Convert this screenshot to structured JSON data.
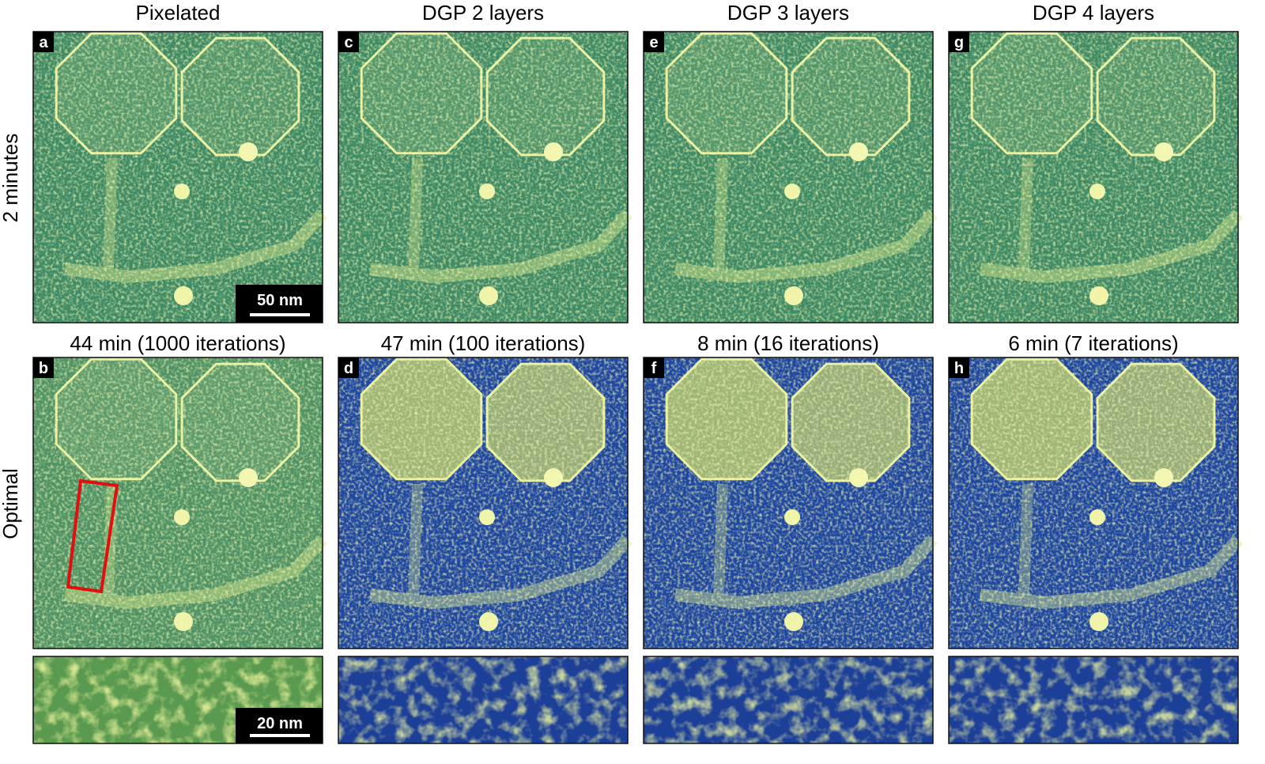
{
  "row_labels": [
    "2 minutes",
    "Optimal"
  ],
  "columns": [
    {
      "title": "Pixelated",
      "top_letter": "a",
      "bottom_letter": "b",
      "time": "44 min (1000 iterations)"
    },
    {
      "title": "DGP 2 layers",
      "top_letter": "c",
      "bottom_letter": "d",
      "time": "47 min (100 iterations)"
    },
    {
      "title": "DGP 3 layers",
      "top_letter": "e",
      "bottom_letter": "f",
      "time": "8 min (16 iterations)"
    },
    {
      "title": "DGP 4 layers",
      "top_letter": "g",
      "bottom_letter": "h",
      "time": "6 min (7 iterations)"
    }
  ],
  "scale_bars": [
    "50 nm",
    "20 nm"
  ]
}
